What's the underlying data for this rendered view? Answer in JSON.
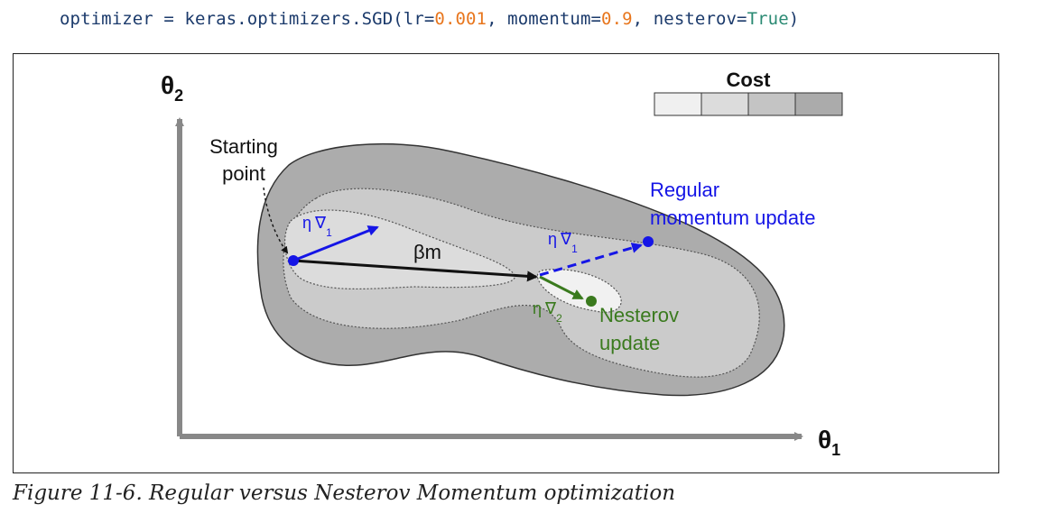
{
  "code": {
    "prefix": "optimizer = keras.optimizers.SGD(lr=",
    "lr": "0.001",
    "mid": ", momentum=",
    "momentum": "0.9",
    "mid2": ", nesterov=",
    "nesterov": "True",
    "suffix": ")"
  },
  "diagram": {
    "axis_y_label": "θ",
    "axis_y_sub": "2",
    "axis_x_label": "θ",
    "axis_x_sub": "1",
    "legend_title": "Cost",
    "legend_colors": [
      "#f0f0f0",
      "#dcdcdc",
      "#c4c4c4",
      "#ababab"
    ],
    "start_label_line1": "Starting",
    "start_label_line2": "point",
    "eta": "η",
    "nabla": "∇",
    "sub1": "1",
    "sub2": "2",
    "beta_m": "βm",
    "regular_line1": "Regular",
    "regular_line2": "momentum update",
    "nesterov_line1": "Nesterov",
    "nesterov_line2": "update",
    "colors": {
      "blue": "#1515e6",
      "green": "#3a7a1e",
      "black": "#111111"
    }
  },
  "caption": "Figure 11-6. Regular versus Nesterov Momentum optimization"
}
